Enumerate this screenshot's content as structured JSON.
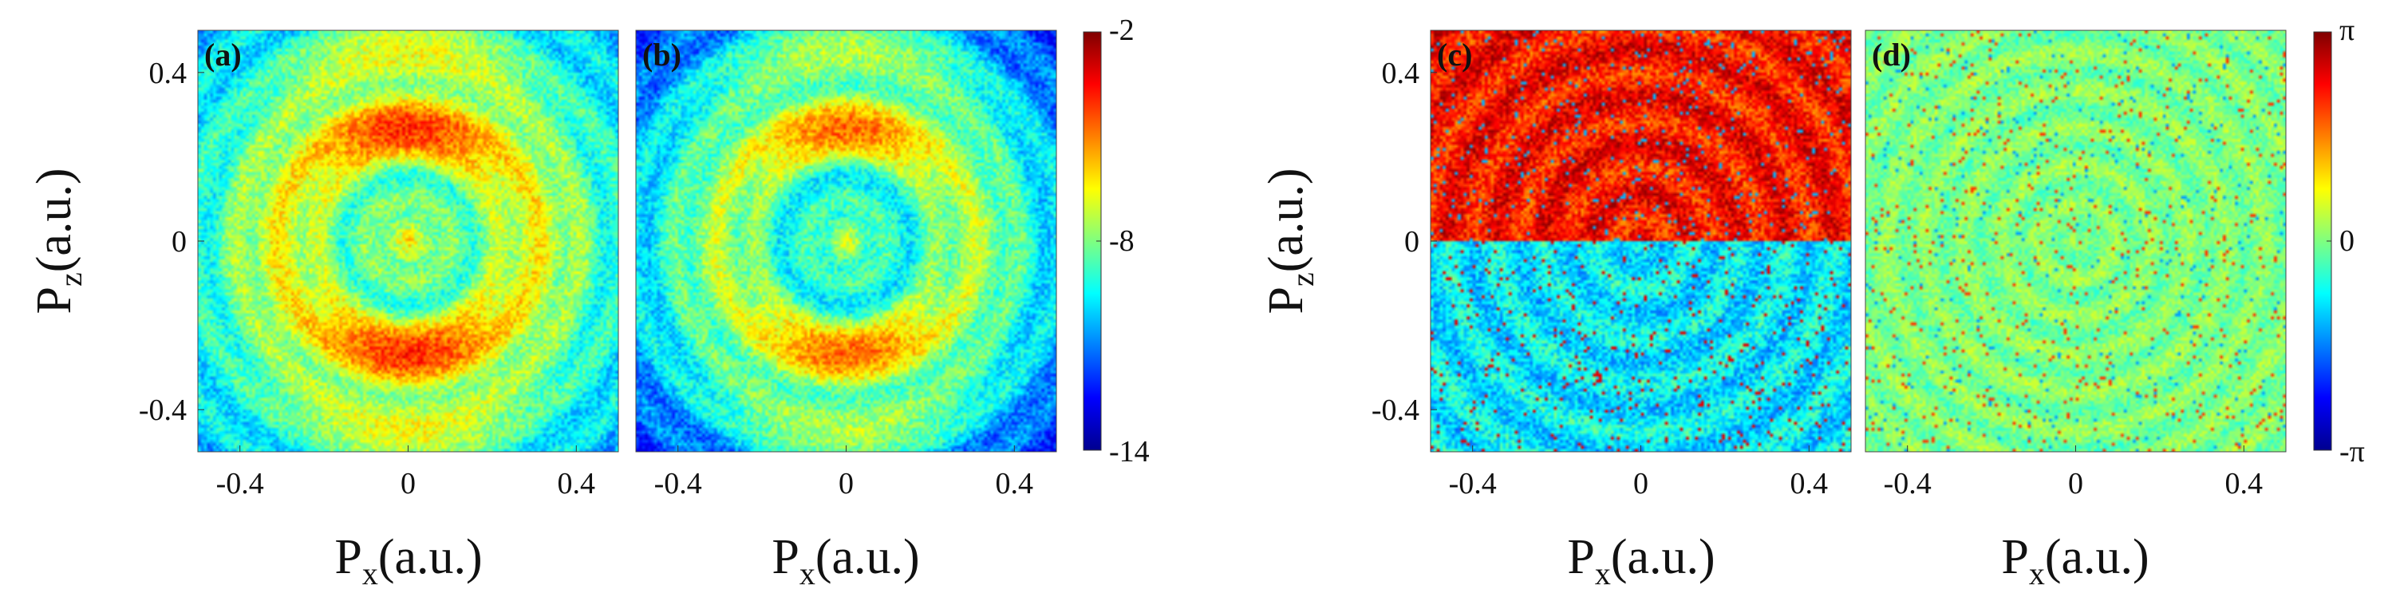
{
  "chart_data": [
    {
      "type": "heatmap",
      "panel_label": "(a)",
      "xlabel": "P",
      "xlabel_sub": "x",
      "xlabel_unit": "(a.u.)",
      "ylabel": "P",
      "ylabel_sub": "z",
      "ylabel_unit": "(a.u.)",
      "xlim": [
        -0.5,
        0.5
      ],
      "ylim": [
        -0.5,
        0.5
      ],
      "xticks": [
        -0.4,
        0,
        0.4
      ],
      "xtick_labels": [
        "-0.4",
        "0",
        "0.4"
      ],
      "yticks": [
        -0.4,
        0,
        0.4
      ],
      "ytick_labels": [
        "-0.4",
        "0",
        "0.4"
      ],
      "clim": [
        -14,
        -2
      ],
      "pattern": "concentric rings; bright spot at origin, strong arcs near Pz = ±0.25 and ±0.45"
    },
    {
      "type": "heatmap",
      "panel_label": "(b)",
      "xlabel": "P",
      "xlabel_sub": "x",
      "xlabel_unit": "(a.u.)",
      "xlim": [
        -0.5,
        0.5
      ],
      "ylim": [
        -0.5,
        0.5
      ],
      "xticks": [
        -0.4,
        0,
        0.4
      ],
      "xtick_labels": [
        "-0.4",
        "0",
        "0.4"
      ],
      "clim": [
        -14,
        -2
      ],
      "pattern": "concentric rings, weaker than (a); dark corners"
    },
    {
      "type": "heatmap",
      "panel_label": "(c)",
      "xlabel": "P",
      "xlabel_sub": "x",
      "xlabel_unit": "(a.u.)",
      "ylabel": "P",
      "ylabel_sub": "z",
      "ylabel_unit": "(a.u.)",
      "xlim": [
        -0.5,
        0.5
      ],
      "ylim": [
        -0.5,
        0.5
      ],
      "xticks": [
        -0.4,
        0,
        0.4
      ],
      "xtick_labels": [
        "-0.4",
        "0",
        "0.4"
      ],
      "yticks": [
        -0.4,
        0,
        0.4
      ],
      "ytick_labels": [
        "-0.4",
        "0",
        "0.4"
      ],
      "clim": [
        -3.14159,
        3.14159
      ],
      "pattern": "phase near +π for Pz > 0, near -π/2 for Pz < 0, noisy ring structure"
    },
    {
      "type": "heatmap",
      "panel_label": "(d)",
      "xlabel": "P",
      "xlabel_sub": "x",
      "xlabel_unit": "(a.u.)",
      "xlim": [
        -0.5,
        0.5
      ],
      "ylim": [
        -0.5,
        0.5
      ],
      "xticks": [
        -0.4,
        0,
        0.4
      ],
      "xtick_labels": [
        "-0.4",
        "0",
        "0.4"
      ],
      "clim": [
        -3.14159,
        3.14159
      ],
      "pattern": "phase mostly near 0 with faint ring structure"
    }
  ],
  "colorbars": [
    {
      "name": "amplitude",
      "colormap": "jet",
      "range": [
        -14,
        -2
      ],
      "ticks": [
        -2,
        -8,
        -14
      ],
      "tick_labels": [
        "-2",
        "-8",
        "-14"
      ]
    },
    {
      "name": "phase",
      "colormap": "jet",
      "range": [
        -3.14159,
        3.14159
      ],
      "ticks": [
        3.14159,
        0,
        -3.14159
      ],
      "tick_labels": [
        "π",
        "0",
        "-π"
      ]
    }
  ]
}
